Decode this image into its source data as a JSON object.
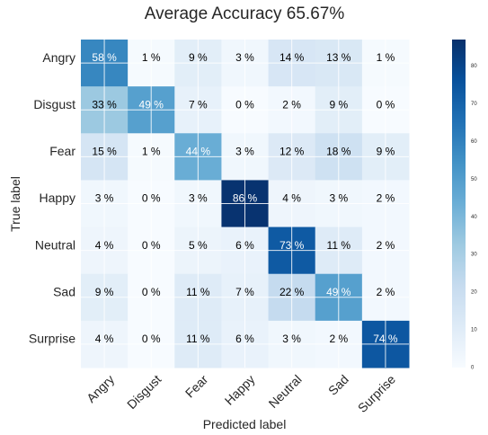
{
  "chart_data": {
    "type": "heatmap",
    "title": "Average Accuracy 65.67%",
    "xlabel": "Predicted label",
    "ylabel": "True label",
    "x_categories": [
      "Angry",
      "Disgust",
      "Fear",
      "Happy",
      "Neutral",
      "Sad",
      "Surprise"
    ],
    "y_categories": [
      "Angry",
      "Disgust",
      "Fear",
      "Happy",
      "Neutral",
      "Sad",
      "Surprise"
    ],
    "cell_labels": [
      [
        "58 %",
        "1 %",
        "9 %",
        "3 %",
        "14 %",
        "13 %",
        "1 %"
      ],
      [
        "33 %",
        "49 %",
        "7 %",
        "0 %",
        "2 %",
        "9 %",
        "0 %"
      ],
      [
        "15 %",
        "1 %",
        "44 %",
        "3 %",
        "12 %",
        "18 %",
        "9 %"
      ],
      [
        "3 %",
        "0 %",
        "3 %",
        "86 %",
        "4 %",
        "3 %",
        "2 %"
      ],
      [
        "4 %",
        "0 %",
        "5 %",
        "6 %",
        "73 %",
        "11 %",
        "2 %"
      ],
      [
        "9 %",
        "0 %",
        "11 %",
        "7 %",
        "22 %",
        "49 %",
        "2 %"
      ],
      [
        "4 %",
        "0 %",
        "11 %",
        "6 %",
        "3 %",
        "2 %",
        "74 %"
      ]
    ],
    "values": [
      [
        58,
        1,
        9,
        3,
        14,
        13,
        1
      ],
      [
        33,
        49,
        7,
        0,
        2,
        9,
        0
      ],
      [
        15,
        1,
        44,
        3,
        12,
        18,
        9
      ],
      [
        3,
        0,
        3,
        86,
        4,
        3,
        2
      ],
      [
        4,
        0,
        5,
        6,
        73,
        11,
        2
      ],
      [
        9,
        0,
        11,
        7,
        22,
        49,
        2
      ],
      [
        4,
        0,
        11,
        6,
        3,
        2,
        74
      ]
    ],
    "colorbar": {
      "min": 0,
      "max": 87,
      "ticks": [
        "0",
        "10",
        "20",
        "30",
        "40",
        "50",
        "60",
        "70",
        "80"
      ],
      "tick_values": [
        0,
        10,
        20,
        30,
        40,
        50,
        60,
        70,
        80
      ],
      "colormap": "Blues",
      "colors": [
        "#f7fbff",
        "#deebf7",
        "#c6dbef",
        "#9ecae1",
        "#6baed6",
        "#4292c6",
        "#2171b5",
        "#08519c",
        "#08306b"
      ]
    },
    "grid": true,
    "legend": "none"
  }
}
